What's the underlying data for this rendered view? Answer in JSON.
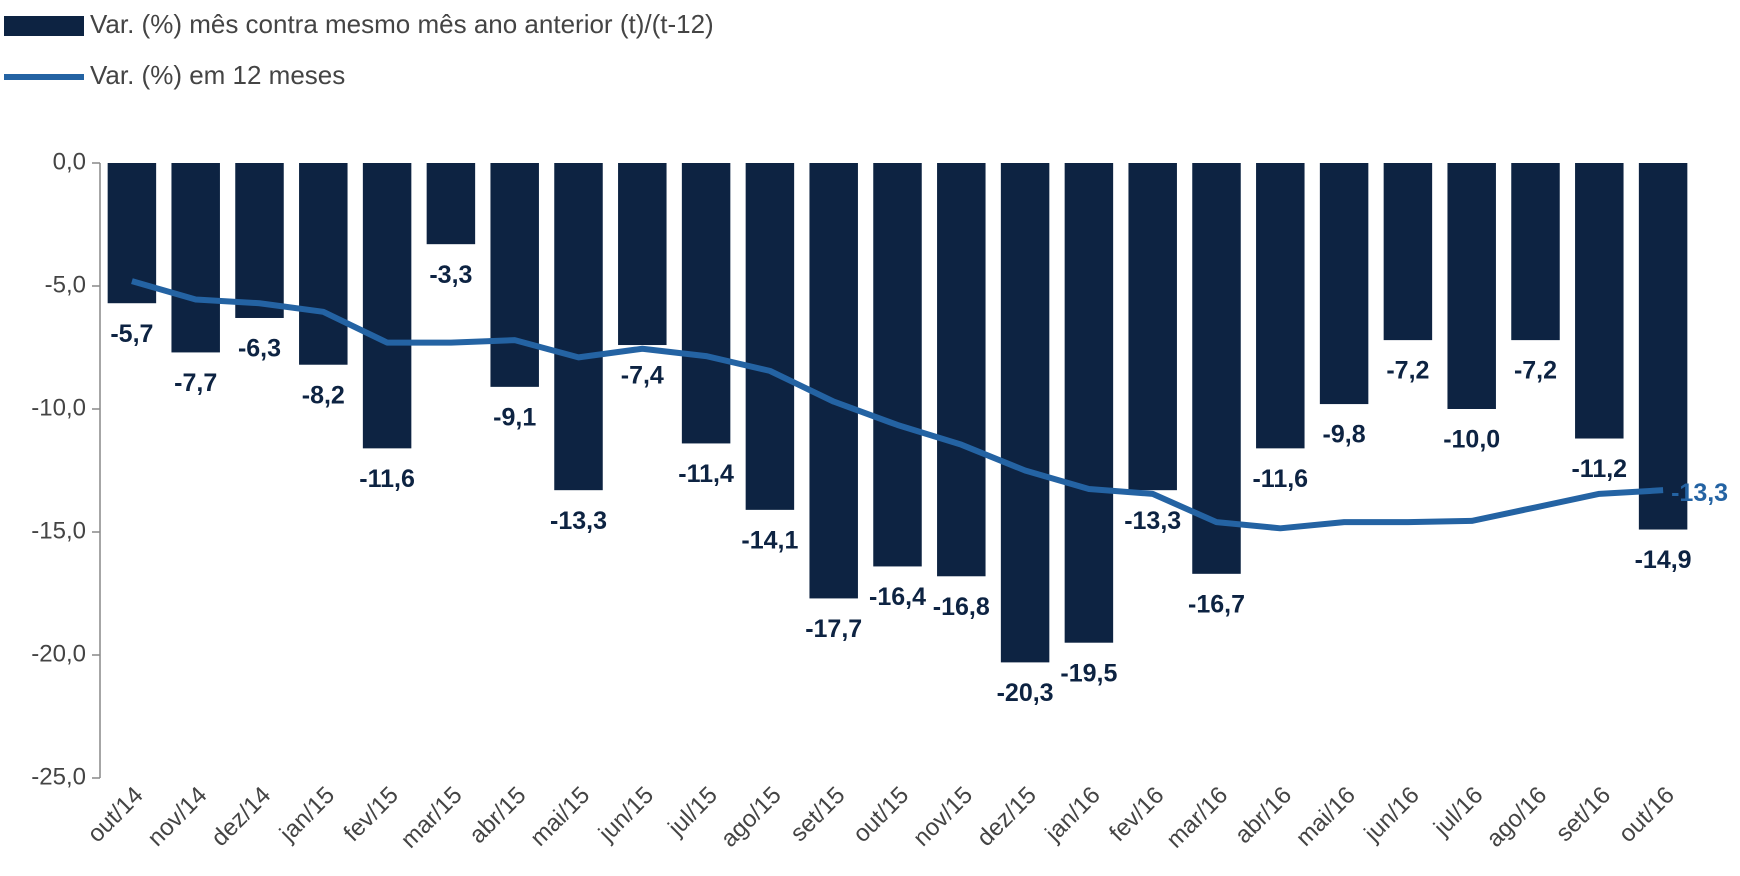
{
  "chart_data": {
    "type": "bar-line",
    "categories": [
      "out/14",
      "nov/14",
      "dez/14",
      "jan/15",
      "fev/15",
      "mar/15",
      "abr/15",
      "mai/15",
      "jun/15",
      "jul/15",
      "ago/15",
      "set/15",
      "out/15",
      "nov/15",
      "dez/15",
      "jan/16",
      "fev/16",
      "mar/16",
      "abr/16",
      "mai/16",
      "jun/16",
      "jul/16",
      "ago/16",
      "set/16",
      "out/16"
    ],
    "series": [
      {
        "name": "Var. (%) mês contra mesmo mês ano anterior (t)/(t-12)",
        "type": "bar",
        "color": "#0d2342",
        "values": [
          -5.7,
          -7.7,
          -6.3,
          -8.2,
          -11.6,
          -3.3,
          -9.1,
          -13.3,
          -7.4,
          -11.4,
          -14.1,
          -17.7,
          -16.4,
          -16.8,
          -20.3,
          -19.5,
          -13.3,
          -16.7,
          -11.6,
          -9.8,
          -7.2,
          -10.0,
          -7.2,
          -11.2,
          -14.9
        ],
        "value_labels": [
          "-5,7",
          "-7,7",
          "-6,3",
          "-8,2",
          "-11,6",
          "-3,3",
          "-9,1",
          "-13,3",
          "-7,4",
          "-11,4",
          "-14,1",
          "-17,7",
          "-16,4",
          "-16,8",
          "-20,3",
          "-19,5",
          "-13,3",
          "-16,7",
          "-11,6",
          "-9,8",
          "-7,2",
          "-10,0",
          "-7,2",
          "-11,2",
          "-14,9"
        ]
      },
      {
        "name": "Var. (%) em 12 meses",
        "type": "line",
        "color": "#2463a3",
        "values": [
          -4.8,
          -5.55,
          -5.7,
          -6.05,
          -7.3,
          -7.3,
          -7.2,
          -7.9,
          -7.55,
          -7.85,
          -8.45,
          -9.7,
          -10.65,
          -11.45,
          -12.5,
          -13.25,
          -13.45,
          -14.6,
          -14.85,
          -14.6,
          -14.6,
          -14.55,
          -14.0,
          -13.45,
          -13.3
        ],
        "value_labels": [
          null,
          null,
          null,
          null,
          null,
          null,
          null,
          null,
          null,
          null,
          null,
          null,
          null,
          null,
          null,
          null,
          null,
          null,
          null,
          null,
          null,
          null,
          null,
          null,
          "-13,3"
        ]
      }
    ],
    "ylim": [
      -25,
      0
    ],
    "yticks": [
      {
        "value": 0,
        "label": "0,0"
      },
      {
        "value": -5,
        "label": "-5,0"
      },
      {
        "value": -10,
        "label": "-10,0"
      },
      {
        "value": -15,
        "label": "-15,0"
      },
      {
        "value": -20,
        "label": "-20,0"
      },
      {
        "value": -25,
        "label": "-25,0"
      }
    ],
    "legend": "top-left"
  }
}
